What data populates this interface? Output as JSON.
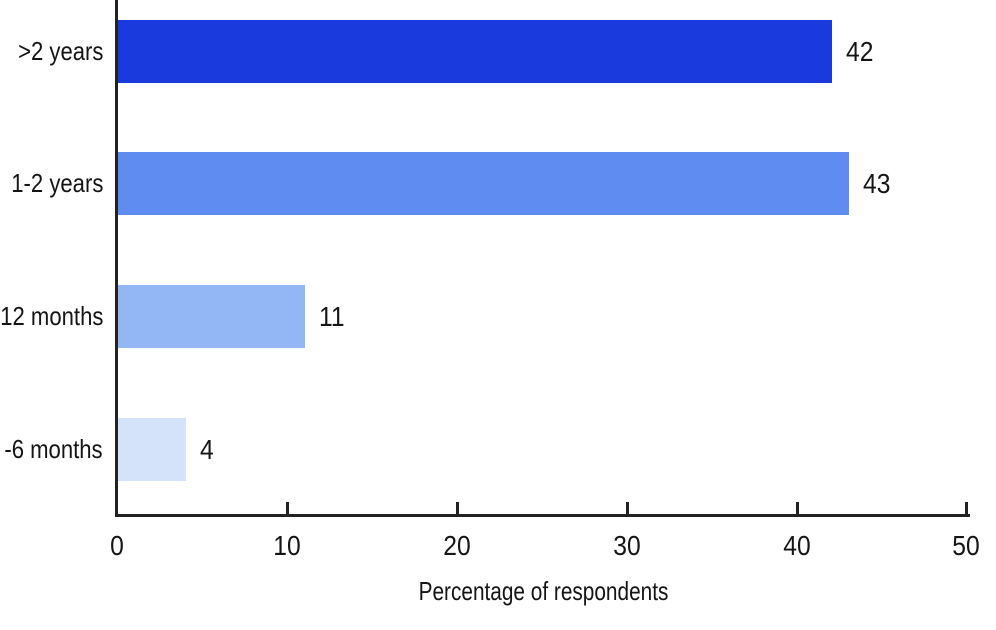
{
  "chart_data": {
    "type": "bar",
    "orientation": "horizontal",
    "xlabel": "Percentage of respondents",
    "categories": [
      ">2 years",
      "1-2 years",
      "12 months",
      "-6 months"
    ],
    "values": [
      42,
      43,
      11,
      4
    ],
    "x_ticks": [
      "0",
      "10",
      "20",
      "30",
      "40",
      "50"
    ],
    "xlim": [
      0,
      50
    ],
    "bar_colors": [
      "#1a3ade",
      "#5e8cf0",
      "#92b7f4",
      "#d4e3fa"
    ],
    "axis_color": "#222222",
    "text_color": "#151515",
    "background": "#ffffff",
    "grid": "off",
    "legend": "none"
  }
}
